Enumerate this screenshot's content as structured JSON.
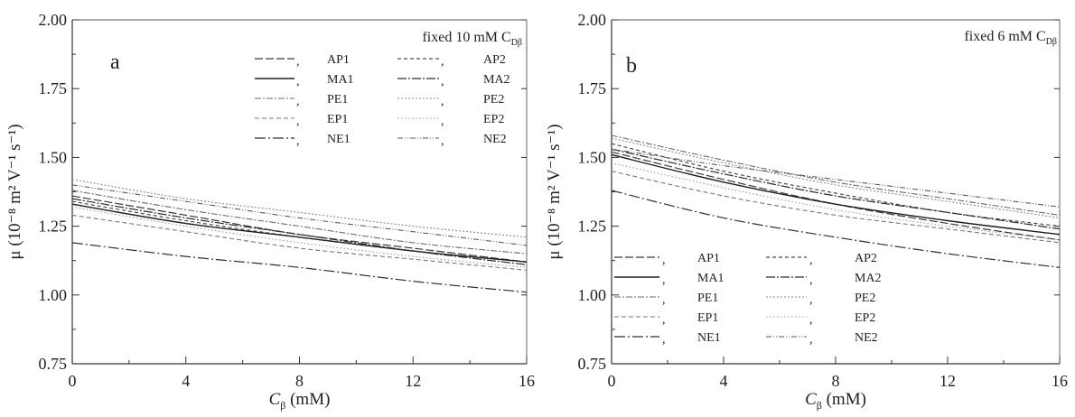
{
  "chart_data": [
    {
      "type": "line",
      "panel": "a",
      "annotation": "fixed 10 mM C",
      "annotation_subscript": "Dβ",
      "xlabel": "C",
      "xlabel_subscript": "β",
      "xlabel_unit": "(mM)",
      "ylabel": "μ (10⁻⁸ m² V⁻¹ s⁻¹)",
      "xlim": [
        0,
        16
      ],
      "ylim": [
        0.75,
        2.0
      ],
      "xticks": [
        0,
        4,
        8,
        12,
        16
      ],
      "yticks": [
        0.75,
        1.0,
        1.25,
        1.5,
        1.75,
        2.0
      ],
      "xtick_labels": [
        "0",
        "4",
        "8",
        "12",
        "16"
      ],
      "ytick_labels": [
        "0.75",
        "1.00",
        "1.25",
        "1.50",
        "1.75",
        "2.00"
      ],
      "legend_placement": "top-right",
      "x": [
        0,
        4,
        8,
        12,
        16
      ],
      "series": [
        {
          "name": "AP1",
          "values": [
            1.36,
            1.29,
            1.22,
            1.17,
            1.12
          ]
        },
        {
          "name": "AP2",
          "values": [
            1.34,
            1.27,
            1.21,
            1.16,
            1.12
          ]
        },
        {
          "name": "MA1",
          "values": [
            1.33,
            1.26,
            1.21,
            1.16,
            1.12
          ]
        },
        {
          "name": "MA2",
          "values": [
            1.35,
            1.28,
            1.22,
            1.16,
            1.11
          ]
        },
        {
          "name": "PE1",
          "values": [
            1.38,
            1.31,
            1.25,
            1.19,
            1.15
          ]
        },
        {
          "name": "PE2",
          "values": [
            1.42,
            1.35,
            1.3,
            1.25,
            1.21
          ]
        },
        {
          "name": "EP1",
          "values": [
            1.29,
            1.23,
            1.17,
            1.13,
            1.09
          ]
        },
        {
          "name": "EP2",
          "values": [
            1.32,
            1.25,
            1.19,
            1.14,
            1.1
          ]
        },
        {
          "name": "NE1",
          "values": [
            1.19,
            1.14,
            1.1,
            1.05,
            1.01
          ]
        },
        {
          "name": "NE2",
          "values": [
            1.4,
            1.34,
            1.28,
            1.23,
            1.18
          ]
        }
      ]
    },
    {
      "type": "line",
      "panel": "b",
      "annotation": "fixed 6 mM C",
      "annotation_subscript": "Dβ",
      "xlabel": "C",
      "xlabel_subscript": "β",
      "xlabel_unit": "(mM)",
      "ylabel": "μ (10⁻⁸ m² V⁻¹ s⁻¹)",
      "xlim": [
        0,
        16
      ],
      "ylim": [
        0.75,
        2.0
      ],
      "xticks": [
        0,
        4,
        8,
        12,
        16
      ],
      "yticks": [
        0.75,
        1.0,
        1.25,
        1.5,
        1.75,
        2.0
      ],
      "xtick_labels": [
        "0",
        "4",
        "8",
        "12",
        "16"
      ],
      "ytick_labels": [
        "0.75",
        "1.00",
        "1.25",
        "1.50",
        "1.75",
        "2.00"
      ],
      "legend_placement": "bottom-left",
      "x": [
        0,
        4,
        8,
        12,
        16
      ],
      "series": [
        {
          "name": "AP1",
          "values": [
            1.52,
            1.42,
            1.33,
            1.26,
            1.2
          ]
        },
        {
          "name": "AP2",
          "values": [
            1.55,
            1.45,
            1.37,
            1.3,
            1.25
          ]
        },
        {
          "name": "MA1",
          "values": [
            1.51,
            1.41,
            1.33,
            1.27,
            1.22
          ]
        },
        {
          "name": "MA2",
          "values": [
            1.53,
            1.44,
            1.36,
            1.3,
            1.24
          ]
        },
        {
          "name": "PE1",
          "values": [
            1.58,
            1.49,
            1.41,
            1.35,
            1.29
          ]
        },
        {
          "name": "PE2",
          "values": [
            1.57,
            1.48,
            1.4,
            1.34,
            1.28
          ]
        },
        {
          "name": "EP1",
          "values": [
            1.45,
            1.36,
            1.29,
            1.24,
            1.19
          ]
        },
        {
          "name": "EP2",
          "values": [
            1.48,
            1.39,
            1.31,
            1.25,
            1.2
          ]
        },
        {
          "name": "NE1",
          "values": [
            1.38,
            1.28,
            1.21,
            1.15,
            1.1
          ]
        },
        {
          "name": "NE2",
          "values": [
            1.53,
            1.47,
            1.42,
            1.37,
            1.32
          ]
        }
      ]
    }
  ]
}
